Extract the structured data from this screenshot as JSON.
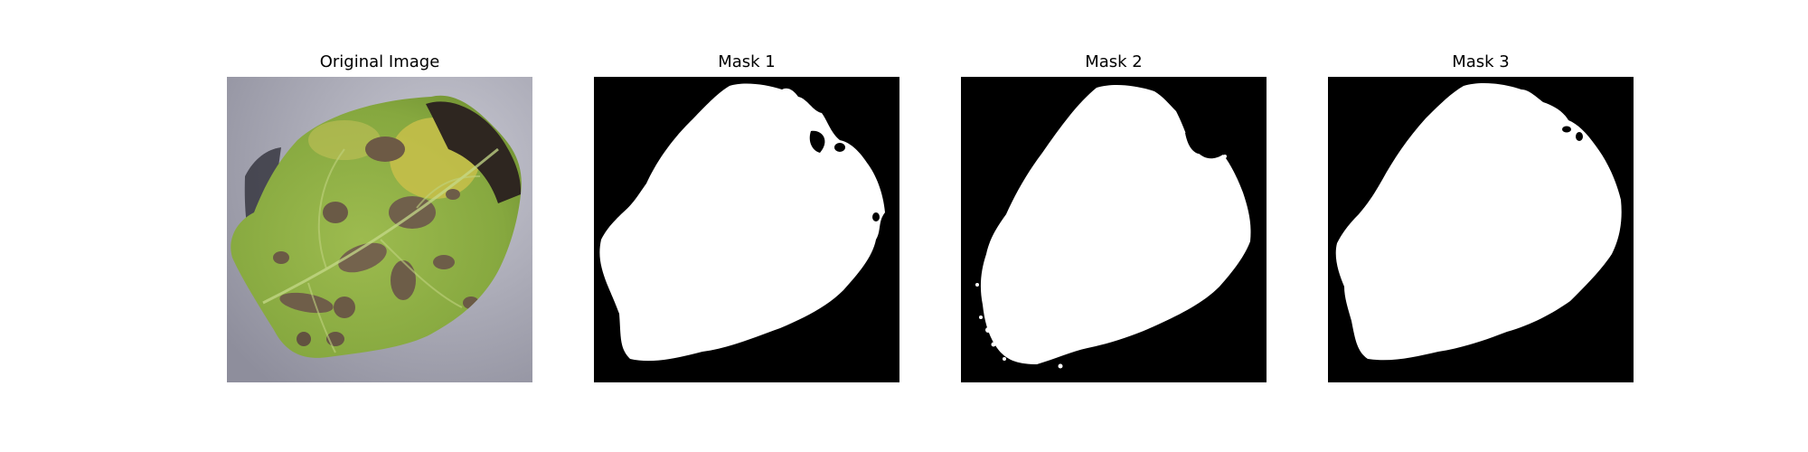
{
  "figure": {
    "panels": [
      {
        "title": "Original Image"
      },
      {
        "title": "Mask 1"
      },
      {
        "title": "Mask 2"
      },
      {
        "title": "Mask 3"
      }
    ]
  },
  "colors": {
    "mask_background": "#000000",
    "mask_foreground": "#ffffff",
    "photo_background": "#9a9aa6",
    "leaf_green": "#8fb146",
    "leaf_yellow": "#c9c24a",
    "lesion_brown": "#6d5a45",
    "necrotic_dark": "#2d2520"
  }
}
